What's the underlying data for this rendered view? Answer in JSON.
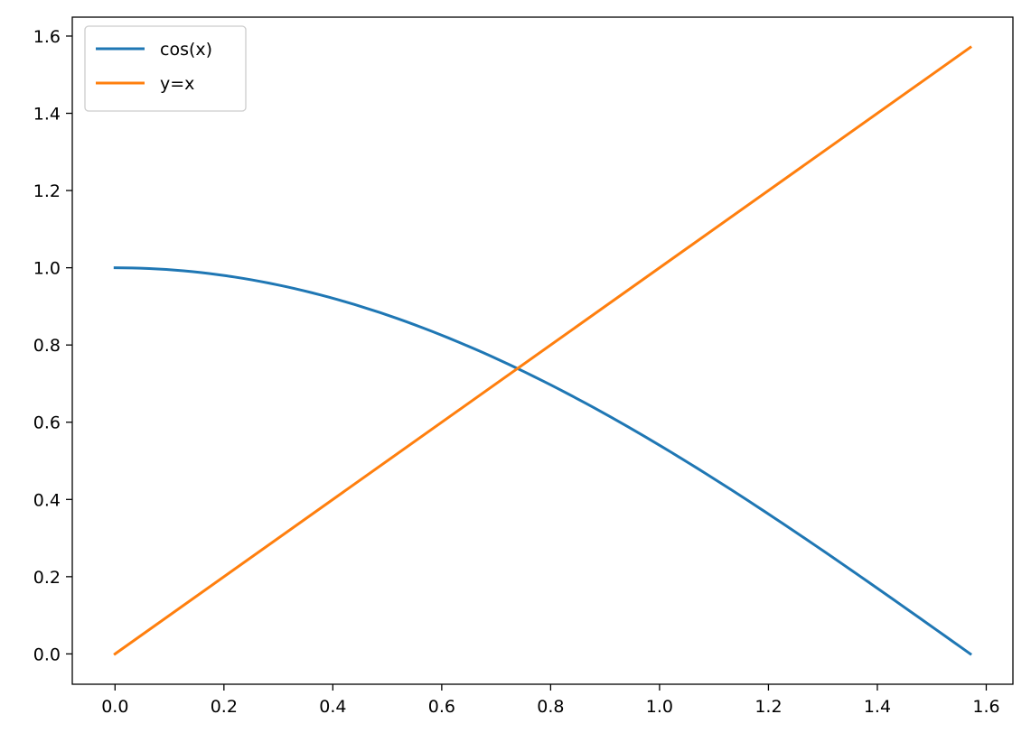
{
  "chart_data": {
    "type": "line",
    "xlim": [
      -0.0785,
      1.649
    ],
    "ylim": [
      -0.0785,
      1.649
    ],
    "x_ticks": [
      0.0,
      0.2,
      0.4,
      0.6,
      0.8,
      1.0,
      1.2,
      1.4,
      1.6
    ],
    "x_tick_labels": [
      "0.0",
      "0.2",
      "0.4",
      "0.6",
      "0.8",
      "1.0",
      "1.2",
      "1.4",
      "1.6"
    ],
    "y_ticks": [
      0.0,
      0.2,
      0.4,
      0.6,
      0.8,
      1.0,
      1.2,
      1.4,
      1.6
    ],
    "y_tick_labels": [
      "0.0",
      "0.2",
      "0.4",
      "0.6",
      "0.8",
      "1.0",
      "1.2",
      "1.4",
      "1.6"
    ],
    "grid": false,
    "legend_position": "top-left",
    "series": [
      {
        "name": "cos(x)",
        "color": "#1f77b4",
        "x": [
          0.0,
          0.1,
          0.2,
          0.3,
          0.4,
          0.5,
          0.6,
          0.7,
          0.8,
          0.9,
          1.0,
          1.1,
          1.2,
          1.3,
          1.4,
          1.5,
          1.5708
        ],
        "y": [
          1.0,
          0.995,
          0.98,
          0.955,
          0.921,
          0.878,
          0.825,
          0.765,
          0.697,
          0.622,
          0.54,
          0.454,
          0.362,
          0.267,
          0.17,
          0.071,
          0.0
        ]
      },
      {
        "name": "y=x",
        "color": "#ff7f0e",
        "x": [
          0.0,
          1.5708
        ],
        "y": [
          0.0,
          1.5708
        ]
      }
    ]
  }
}
